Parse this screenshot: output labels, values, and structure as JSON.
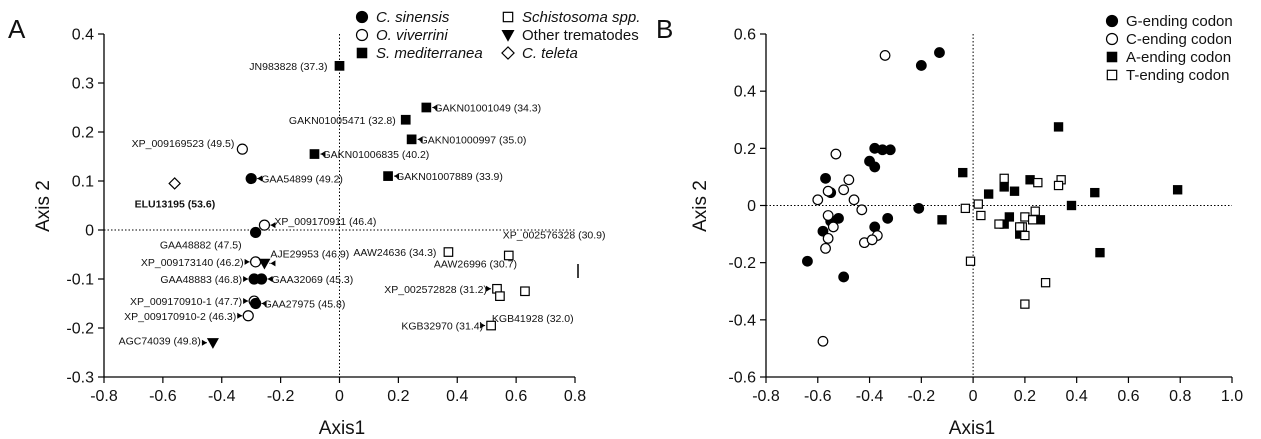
{
  "chart_data": [
    {
      "panel": "A",
      "type": "scatter",
      "xlabel": "Axis1",
      "ylabel": "Axis 2",
      "xlim": [
        -0.8,
        0.8
      ],
      "ylim": [
        -0.3,
        0.4
      ],
      "xticks": [
        "-0.8",
        "-0.6",
        "-0.4",
        "-0.2",
        "0",
        "0.2",
        "0.4",
        "0.6",
        "0.8"
      ],
      "yticks": [
        "-0.3",
        "-0.2",
        "-0.1",
        "0",
        "0.1",
        "0.2",
        "0.3",
        "0.4"
      ],
      "legend": [
        {
          "label": "C. sinensis",
          "marker": "filled-circle",
          "italic": true
        },
        {
          "label": "O. viverrini",
          "marker": "open-circle",
          "italic": true
        },
        {
          "label": "S. mediterranea",
          "marker": "filled-square",
          "italic": true
        },
        {
          "label": "Schistosoma spp.",
          "marker": "open-square",
          "italic": true
        },
        {
          "label": "Other trematodes",
          "marker": "filled-triangle-down",
          "italic": false
        },
        {
          "label": "C. teleta",
          "marker": "open-diamond",
          "italic": true
        }
      ],
      "points": [
        {
          "label": "JN983828 (37.3)",
          "x": 0.0,
          "y": 0.335,
          "marker": "filled-square"
        },
        {
          "label": "GAKN01001049 (34.3)",
          "x": 0.295,
          "y": 0.25,
          "marker": "filled-square"
        },
        {
          "label": "GAKN01005471 (32.8)",
          "x": 0.225,
          "y": 0.225,
          "marker": "filled-square"
        },
        {
          "label": "GAKN01000997 (35.0)",
          "x": 0.245,
          "y": 0.185,
          "marker": "filled-square"
        },
        {
          "label": "GAKN01006835 (40.2)",
          "x": -0.085,
          "y": 0.155,
          "marker": "filled-square"
        },
        {
          "label": "GAKN01007889 (33.9)",
          "x": 0.165,
          "y": 0.11,
          "marker": "filled-square"
        },
        {
          "label": "XP_009169523 (49.5)",
          "x": -0.33,
          "y": 0.165,
          "marker": "open-circle"
        },
        {
          "label": "GAA54899 (49.2)",
          "x": -0.3,
          "y": 0.105,
          "marker": "filled-circle"
        },
        {
          "label": "ELU13195 (53.6)",
          "x": -0.56,
          "y": 0.095,
          "marker": "open-diamond"
        },
        {
          "label": "XP_009170911 (46.4)",
          "x": -0.255,
          "y": 0.01,
          "marker": "open-circle"
        },
        {
          "label": "GAA48882 (47.5)",
          "x": -0.285,
          "y": -0.005,
          "marker": "filled-circle"
        },
        {
          "label": "XP_009173140 (46.2)",
          "x": -0.285,
          "y": -0.065,
          "marker": "open-circle"
        },
        {
          "label": "AJE29953 (46.9)",
          "x": -0.255,
          "y": -0.068,
          "marker": "filled-triangle-down"
        },
        {
          "label": "GAA48883 (46.8)",
          "x": -0.29,
          "y": -0.1,
          "marker": "filled-circle"
        },
        {
          "label": "GAA32069 (45.3)",
          "x": -0.265,
          "y": -0.1,
          "marker": "filled-circle"
        },
        {
          "label": "XP_009170910-1 (47.7)",
          "x": -0.29,
          "y": -0.145,
          "marker": "open-circle"
        },
        {
          "label": "GAA27975 (45.8)",
          "x": -0.285,
          "y": -0.15,
          "marker": "filled-circle"
        },
        {
          "label": "XP_009170910-2 (46.3)",
          "x": -0.31,
          "y": -0.175,
          "marker": "open-circle"
        },
        {
          "label": "AGC74039 (49.8)",
          "x": -0.43,
          "y": -0.23,
          "marker": "filled-triangle-down"
        },
        {
          "label": "AAW24636 (34.3)",
          "x": 0.37,
          "y": -0.045,
          "marker": "open-square"
        },
        {
          "label": "XP_002576328 (30.9)",
          "x": 0.575,
          "y": -0.052,
          "marker": "open-square"
        },
        {
          "label": "AAW26996 (30.7)",
          "x": 0.63,
          "y": -0.125,
          "marker": "open-square"
        },
        {
          "label": "XP_002572828 (31.2)",
          "x": 0.535,
          "y": -0.12,
          "marker": "open-square"
        },
        {
          "label": "KGB41928 (32.0)",
          "x": 0.545,
          "y": -0.135,
          "marker": "open-square"
        },
        {
          "label": "KGB32970 (31.4)",
          "x": 0.515,
          "y": -0.195,
          "marker": "open-square"
        }
      ]
    },
    {
      "panel": "B",
      "type": "scatter",
      "xlabel": "Axis1",
      "ylabel": "Axis 2",
      "xlim": [
        -0.8,
        1.0
      ],
      "ylim": [
        -0.6,
        0.6
      ],
      "xticks": [
        "-0.8",
        "-0.6",
        "-0.4",
        "-0.2",
        "0",
        "0.2",
        "0.4",
        "0.6",
        "0.8",
        "1.0"
      ],
      "yticks": [
        "-0.6",
        "-0.4",
        "-0.2",
        "0",
        "0.2",
        "0.4",
        "0.6"
      ],
      "legend": [
        {
          "label": "G-ending codon",
          "marker": "filled-circle"
        },
        {
          "label": "C-ending codon",
          "marker": "open-circle"
        },
        {
          "label": "A-ending codon",
          "marker": "filled-square"
        },
        {
          "label": "T-ending codon",
          "marker": "open-square"
        }
      ],
      "series": [
        {
          "name": "G-ending codon",
          "marker": "filled-circle",
          "x": [
            -0.13,
            -0.2,
            -0.35,
            -0.38,
            -0.32,
            -0.4,
            -0.38,
            -0.57,
            -0.55,
            -0.58,
            -0.52,
            -0.55,
            -0.33,
            -0.38,
            -0.21,
            -0.64,
            -0.5
          ],
          "y": [
            0.535,
            0.49,
            0.195,
            0.2,
            0.195,
            0.155,
            0.135,
            0.095,
            0.045,
            -0.09,
            -0.045,
            -0.055,
            -0.045,
            -0.075,
            -0.01,
            -0.195,
            -0.25
          ]
        },
        {
          "name": "C-ending codon",
          "marker": "open-circle",
          "x": [
            -0.34,
            -0.53,
            -0.6,
            -0.56,
            -0.5,
            -0.48,
            -0.46,
            -0.43,
            -0.42,
            -0.37,
            -0.39,
            -0.56,
            -0.54,
            -0.57,
            -0.56,
            -0.58
          ],
          "y": [
            0.525,
            0.18,
            0.02,
            0.05,
            0.055,
            0.09,
            0.02,
            -0.015,
            -0.13,
            -0.105,
            -0.12,
            -0.035,
            -0.075,
            -0.15,
            -0.115,
            -0.475
          ]
        },
        {
          "name": "A-ending codon",
          "marker": "filled-square",
          "x": [
            0.33,
            -0.04,
            0.12,
            0.16,
            0.22,
            0.47,
            0.79,
            0.06,
            0.38,
            0.12,
            0.26,
            0.18,
            0.14,
            -0.12,
            0.49
          ],
          "y": [
            0.275,
            0.115,
            0.065,
            0.05,
            0.09,
            0.045,
            0.055,
            0.04,
            0.0,
            -0.065,
            -0.05,
            -0.1,
            -0.04,
            -0.05,
            -0.165
          ]
        },
        {
          "name": "T-ending codon",
          "marker": "open-square",
          "x": [
            0.34,
            0.25,
            0.12,
            0.02,
            -0.03,
            0.33,
            0.03,
            0.1,
            0.2,
            0.23,
            0.19,
            0.24,
            0.2,
            0.18,
            -0.01,
            0.28,
            0.2
          ],
          "y": [
            0.09,
            0.08,
            0.095,
            0.005,
            -0.01,
            0.07,
            -0.035,
            -0.065,
            -0.04,
            -0.05,
            -0.075,
            -0.02,
            -0.105,
            -0.075,
            -0.195,
            -0.27,
            -0.345
          ]
        }
      ]
    }
  ]
}
